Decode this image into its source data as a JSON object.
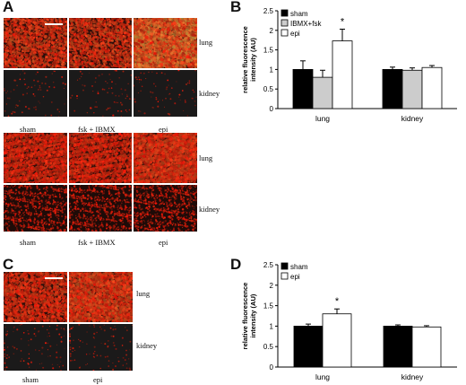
{
  "figure": {
    "panels": {
      "A": {
        "letter": "A",
        "tissues": [
          "lung",
          "kidney"
        ],
        "columns": [
          "sham",
          "fsk + IBMX",
          "epi"
        ]
      },
      "C": {
        "letter": "C",
        "tissues": [
          "lung",
          "kidney"
        ],
        "columns": [
          "sham",
          "epi"
        ]
      },
      "B": {
        "letter": "B"
      },
      "D": {
        "letter": "D"
      }
    },
    "colors": {
      "tissue_red": "#d2331a",
      "background_dark": "#1a1414",
      "bar_black": "#000000",
      "bar_gray": "#cccccc",
      "bar_white": "#ffffff"
    }
  },
  "chart_data": [
    {
      "panel": "B",
      "type": "bar",
      "ylabel": "relative fluorescence intensity (AU)",
      "ylim": [
        0,
        2.5
      ],
      "yticks": [
        "0",
        "0.5",
        "1",
        "1.5",
        "2",
        "2.5"
      ],
      "categories": [
        "lung",
        "kidney"
      ],
      "series": [
        {
          "name": "sham",
          "color": "#000000",
          "values": [
            1.0,
            1.0
          ],
          "errors": [
            0.22,
            0.06
          ]
        },
        {
          "name": "IBMX+fsk",
          "color": "#cccccc",
          "values": [
            0.8,
            0.98
          ],
          "errors": [
            0.18,
            0.06
          ]
        },
        {
          "name": "epi",
          "color": "#ffffff",
          "values": [
            1.73,
            1.05
          ],
          "errors": [
            0.3,
            0.05
          ]
        }
      ],
      "annotations": [
        {
          "text": "*",
          "category": "lung",
          "series": "epi"
        }
      ],
      "legend": "top-left",
      "grid": false
    },
    {
      "panel": "D",
      "type": "bar",
      "ylabel": "relative fluorescence intensity (AU)",
      "ylim": [
        0,
        2.5
      ],
      "yticks": [
        "0",
        "0.5",
        "1",
        "1.5",
        "2",
        "2.5"
      ],
      "categories": [
        "lung",
        "kidney"
      ],
      "series": [
        {
          "name": "sham",
          "color": "#000000",
          "values": [
            1.0,
            1.0
          ],
          "errors": [
            0.05,
            0.03
          ]
        },
        {
          "name": "epi",
          "color": "#ffffff",
          "values": [
            1.3,
            0.98
          ],
          "errors": [
            0.12,
            0.03
          ]
        }
      ],
      "annotations": [
        {
          "text": "*",
          "category": "lung",
          "series": "epi"
        }
      ],
      "legend": "top-left",
      "grid": false
    }
  ]
}
